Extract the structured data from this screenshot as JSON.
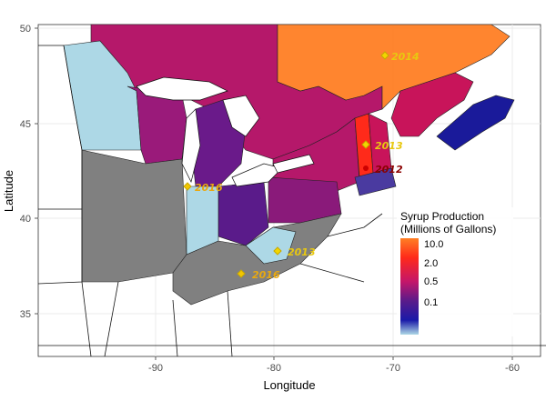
{
  "axes": {
    "x_title": "Longitude",
    "y_title": "Latitude",
    "x_ticks": [
      "-90",
      "-80",
      "-70",
      "-60"
    ],
    "y_ticks": [
      "50",
      "45",
      "40",
      "35"
    ]
  },
  "legend": {
    "title_line1": "Syrup Production",
    "title_line2": "(Millions of Gallons)",
    "ticks": [
      "10.0",
      "2.0",
      "0.5",
      "0.1"
    ],
    "gradient": [
      "#ff7f24",
      "#ff2a1a",
      "#c4166a",
      "#5a1b8a",
      "#1a1aa8",
      "#add8e6"
    ]
  },
  "annotations": [
    {
      "label": "2014",
      "color": "#e8c810"
    },
    {
      "label": "2013",
      "color": "#e8c810"
    },
    {
      "label": "2012",
      "color": "#8b0000"
    },
    {
      "label": "2016",
      "color": "#e8a810"
    },
    {
      "label": "2016",
      "color": "#e8a810"
    },
    {
      "label": "2013",
      "color": "#e8c810"
    }
  ],
  "colors": {
    "panel_bg": "#ffffff",
    "grid": "#ebebeb",
    "no_data": "#808080",
    "low": "#add8e6"
  }
}
